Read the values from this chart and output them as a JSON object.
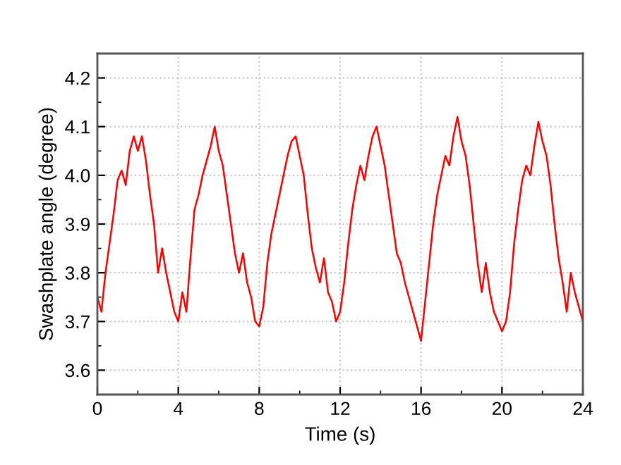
{
  "chart_data": {
    "type": "line",
    "xlabel": "Time (s)",
    "ylabel": "Swashplate angle (degree)",
    "xlim": [
      0,
      24
    ],
    "xticks": [
      0,
      4,
      8,
      12,
      16,
      20,
      24
    ],
    "ylim": [
      3.55,
      4.25
    ],
    "yticks": [
      3.6,
      3.7,
      3.8,
      3.9,
      {
        "value": 4,
        "label": "4.0"
      },
      4.1,
      4.2
    ],
    "grid": true,
    "line_style": "solid",
    "series": [
      {
        "color": "#ff0000",
        "x": [
          0,
          0.2,
          0.4,
          0.6,
          0.8,
          1.0,
          1.2,
          1.4,
          1.6,
          1.8,
          2.0,
          2.2,
          2.4,
          2.6,
          2.8,
          3.0,
          3.2,
          3.4,
          3.6,
          3.8,
          4.0,
          4.2,
          4.4,
          4.6,
          4.8,
          5.0,
          5.2,
          5.4,
          5.6,
          5.8,
          6.0,
          6.2,
          6.4,
          6.6,
          6.8,
          7.0,
          7.2,
          7.4,
          7.6,
          7.8,
          8.0,
          8.2,
          8.4,
          8.6,
          8.8,
          9.0,
          9.2,
          9.4,
          9.6,
          9.8,
          10.0,
          10.2,
          10.4,
          10.6,
          10.8,
          11.0,
          11.2,
          11.4,
          11.6,
          11.8,
          12.0,
          12.2,
          12.4,
          12.6,
          12.8,
          13.0,
          13.2,
          13.4,
          13.6,
          13.8,
          14.0,
          14.2,
          14.4,
          14.6,
          14.8,
          15.0,
          15.2,
          15.4,
          15.6,
          15.8,
          16.0,
          16.2,
          16.4,
          16.6,
          16.8,
          17.0,
          17.2,
          17.4,
          17.6,
          17.8,
          18.0,
          18.2,
          18.4,
          18.6,
          18.8,
          19.0,
          19.2,
          19.4,
          19.6,
          19.8,
          20.0,
          20.2,
          20.4,
          20.6,
          20.8,
          21.0,
          21.2,
          21.4,
          21.6,
          21.8,
          22.0,
          22.2,
          22.4,
          22.6,
          22.8,
          23.0,
          23.2,
          23.4,
          23.6,
          23.8,
          24.0
        ],
        "values": [
          3.75,
          3.72,
          3.8,
          3.86,
          3.92,
          3.99,
          4.01,
          3.98,
          4.05,
          4.08,
          4.05,
          4.08,
          4.03,
          3.96,
          3.9,
          3.8,
          3.85,
          3.8,
          3.76,
          3.72,
          3.7,
          3.76,
          3.72,
          3.83,
          3.93,
          3.96,
          4.0,
          4.03,
          4.06,
          4.1,
          4.05,
          4.02,
          3.96,
          3.9,
          3.84,
          3.8,
          3.84,
          3.78,
          3.75,
          3.7,
          3.69,
          3.73,
          3.82,
          3.88,
          3.92,
          3.96,
          4.0,
          4.04,
          4.07,
          4.08,
          4.04,
          4.0,
          3.92,
          3.85,
          3.81,
          3.78,
          3.83,
          3.76,
          3.74,
          3.7,
          3.72,
          3.78,
          3.86,
          3.93,
          3.98,
          4.02,
          3.99,
          4.04,
          4.08,
          4.1,
          4.06,
          4.02,
          3.96,
          3.9,
          3.84,
          3.82,
          3.78,
          3.75,
          3.72,
          3.69,
          3.66,
          3.74,
          3.82,
          3.9,
          3.96,
          4.0,
          4.04,
          4.02,
          4.08,
          4.12,
          4.07,
          4.04,
          3.98,
          3.9,
          3.82,
          3.76,
          3.82,
          3.76,
          3.72,
          3.7,
          3.68,
          3.7,
          3.76,
          3.86,
          3.93,
          3.99,
          4.02,
          4.0,
          4.06,
          4.11,
          4.07,
          4.04,
          3.98,
          3.9,
          3.83,
          3.78,
          3.72,
          3.8,
          3.76,
          3.73,
          3.7
        ]
      }
    ]
  }
}
